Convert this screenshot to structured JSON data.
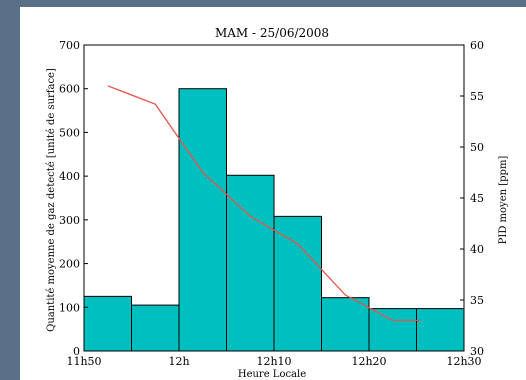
{
  "chart_data": {
    "type": "bar",
    "title": "MAM - 25/06/2008",
    "xlabel": "Heure Locale",
    "ylabel": "Quantité moyenne de gaz detecté [unité de surface]",
    "ylabel_right": "PID moyen [ppm]",
    "x_ticks": [
      "11h50",
      "12h",
      "12h10",
      "12h20",
      "12h30"
    ],
    "y_ticks": [
      "0",
      "100",
      "200",
      "300",
      "400",
      "500",
      "600",
      "700"
    ],
    "y2_ticks": [
      "30",
      "35",
      "40",
      "45",
      "50",
      "55",
      "60"
    ],
    "ylim": [
      0,
      700
    ],
    "y2lim": [
      30,
      60
    ],
    "xlim_minutes": [
      0,
      40
    ],
    "bars": [
      {
        "start": 0,
        "end": 5,
        "value": 125
      },
      {
        "start": 5,
        "end": 10,
        "value": 105
      },
      {
        "start": 10,
        "end": 15,
        "value": 600
      },
      {
        "start": 15,
        "end": 20,
        "value": 402
      },
      {
        "start": 20,
        "end": 25,
        "value": 308
      },
      {
        "start": 25,
        "end": 30,
        "value": 122
      },
      {
        "start": 30,
        "end": 35,
        "value": 97
      },
      {
        "start": 35,
        "end": 40,
        "value": 97
      }
    ],
    "series": [
      {
        "axis": "right",
        "color": "#e8524c",
        "x": [
          2.5,
          7.5,
          12.5,
          17.5,
          22.5,
          27.5,
          32.5,
          35.5
        ],
        "values": [
          56.0,
          54.2,
          47.5,
          43.2,
          40.5,
          35.5,
          33.0,
          33.0
        ]
      }
    ],
    "bar_color": "#00bfbf",
    "grid": false
  }
}
